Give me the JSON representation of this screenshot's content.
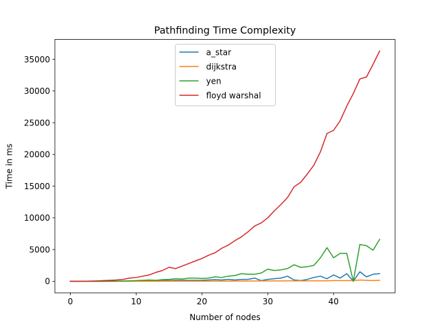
{
  "chart_data": {
    "type": "line",
    "title": "Pathfinding Time Complexity",
    "xlabel": "Number of nodes",
    "ylabel": "Time in ms",
    "xlim": [
      -2.35,
      49.35
    ],
    "ylim": [
      -1820,
      38120
    ],
    "xticks": [
      0,
      10,
      20,
      30,
      40
    ],
    "yticks": [
      0,
      5000,
      10000,
      15000,
      20000,
      25000,
      30000,
      35000
    ],
    "grid": false,
    "legend_position": "upper center",
    "x": [
      0,
      1,
      2,
      3,
      4,
      5,
      6,
      7,
      8,
      9,
      10,
      11,
      12,
      13,
      14,
      15,
      16,
      17,
      18,
      19,
      20,
      21,
      22,
      23,
      24,
      25,
      26,
      27,
      28,
      29,
      30,
      31,
      32,
      33,
      34,
      35,
      36,
      37,
      38,
      39,
      40,
      41,
      42,
      43,
      44,
      45,
      46,
      47
    ],
    "series": [
      {
        "name": "a_star",
        "color": "#1f77b4",
        "values": [
          0,
          0,
          0,
          0,
          0,
          0,
          0,
          0,
          20,
          30,
          50,
          60,
          70,
          80,
          100,
          120,
          150,
          150,
          150,
          150,
          160,
          200,
          250,
          200,
          300,
          200,
          300,
          300,
          500,
          100,
          300,
          400,
          500,
          800,
          200,
          100,
          300,
          600,
          800,
          400,
          1000,
          500,
          1200,
          0,
          1500,
          700,
          1100,
          1200
        ]
      },
      {
        "name": "dijkstra",
        "color": "#ff7f0e",
        "values": [
          0,
          0,
          0,
          0,
          0,
          0,
          0,
          0,
          0,
          0,
          10,
          10,
          10,
          10,
          20,
          20,
          20,
          20,
          30,
          30,
          30,
          30,
          30,
          30,
          30,
          40,
          40,
          40,
          40,
          50,
          50,
          50,
          50,
          60,
          60,
          60,
          60,
          70,
          70,
          80,
          100,
          100,
          100,
          100,
          200,
          150,
          100,
          150
        ]
      },
      {
        "name": "yen",
        "color": "#2ca02c",
        "values": [
          0,
          0,
          0,
          0,
          0,
          0,
          10,
          20,
          40,
          60,
          100,
          150,
          200,
          150,
          250,
          300,
          400,
          350,
          500,
          500,
          450,
          500,
          700,
          600,
          800,
          900,
          1200,
          1100,
          1100,
          1300,
          1900,
          1700,
          1800,
          2000,
          2600,
          2200,
          2300,
          2500,
          3700,
          5300,
          3700,
          4400,
          4400,
          0,
          5800,
          5600,
          4900,
          6600
        ]
      },
      {
        "name": "floyd warshal",
        "color": "#d62728",
        "values": [
          0,
          0,
          10,
          20,
          50,
          100,
          150,
          200,
          300,
          500,
          600,
          800,
          1000,
          1400,
          1700,
          2200,
          2000,
          2400,
          2800,
          3200,
          3600,
          4100,
          4500,
          5200,
          5700,
          6400,
          7000,
          7800,
          8700,
          9200,
          10000,
          11100,
          12100,
          13200,
          14900,
          15600,
          16900,
          18300,
          20400,
          23300,
          23800,
          25300,
          27600,
          29600,
          31900,
          32200,
          34200,
          36300
        ]
      }
    ]
  }
}
